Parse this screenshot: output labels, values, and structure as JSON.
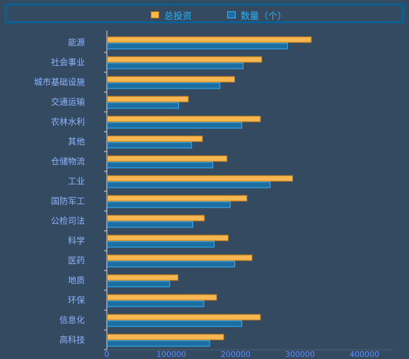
{
  "legend": {
    "items": [
      {
        "label": "总投资",
        "color": "#f6b650",
        "border": "#b87715"
      },
      {
        "label": "数量（个）",
        "color": "#1d6ea0",
        "border": "#35b3ff"
      }
    ]
  },
  "chart_data": {
    "type": "bar",
    "orientation": "horizontal",
    "categories": [
      "能源",
      "社会事业",
      "城市基础设施",
      "交通运输",
      "农林水利",
      "其他",
      "仓储物流",
      "工业",
      "国防军工",
      "公检司法",
      "科学",
      "医药",
      "地质",
      "环保",
      "信息化",
      "高科技"
    ],
    "series": [
      {
        "name": "总投资",
        "values": [
          317000,
          240000,
          198000,
          126000,
          238000,
          148000,
          186000,
          288000,
          217000,
          151000,
          188000,
          225000,
          110000,
          170000,
          238000,
          181000
        ],
        "color": "#f6b650"
      },
      {
        "name": "数量（个）",
        "values": [
          280000,
          211000,
          175000,
          111000,
          209000,
          131000,
          164000,
          253000,
          191000,
          133000,
          166000,
          198000,
          97000,
          150000,
          209000,
          159000
        ],
        "color": "#1d6ea0"
      }
    ],
    "x_ticks": [
      "0",
      "100000",
      "200000",
      "300000",
      "400000"
    ],
    "xlim": [
      0,
      400000
    ],
    "grid": false,
    "legend_position": "top-center"
  }
}
